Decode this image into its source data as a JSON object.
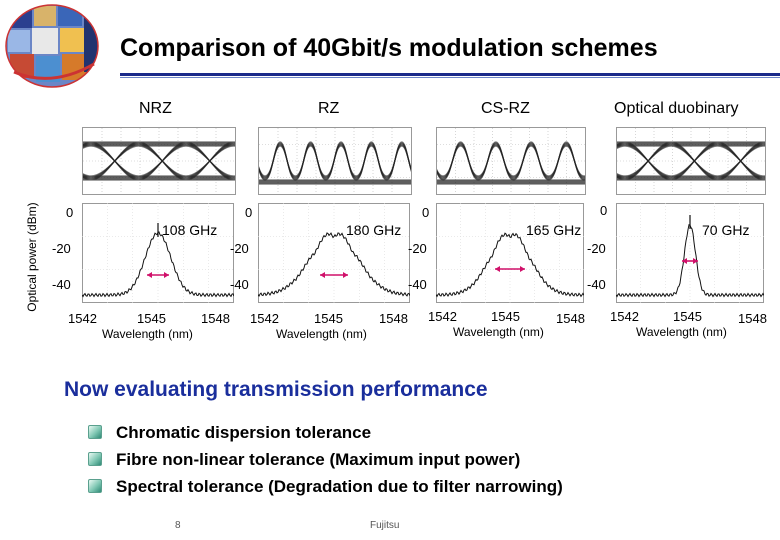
{
  "title": "Comparison of 40Gbit/s modulation schemes",
  "y_axis_label": "Optical power (dBm)",
  "schemes": [
    {
      "name": "NRZ",
      "bandwidth": "108 GHz"
    },
    {
      "name": "RZ",
      "bandwidth": "180 GHz"
    },
    {
      "name": "CS-RZ",
      "bandwidth": "165 GHz"
    },
    {
      "name": "Optical duobinary",
      "bandwidth": "70 GHz"
    }
  ],
  "spectrum_axis": {
    "y_ticks": [
      "0",
      "-20",
      "-40"
    ],
    "x_ticks": [
      "1542",
      "1545",
      "1548"
    ],
    "x_label": "Wavelength (nm)"
  },
  "headline": "Now evaluating transmission performance",
  "bullets": [
    "Chromatic dispersion tolerance",
    "Fibre non-linear tolerance (Maximum input power)",
    "Spectral tolerance (Degradation due to filter narrowing)"
  ],
  "footer": {
    "page": "8",
    "company": "Fujitsu"
  },
  "colors": {
    "accent": "#1a2e9c",
    "rule": "#1a2a8a",
    "arrow": "#d0106a"
  }
}
